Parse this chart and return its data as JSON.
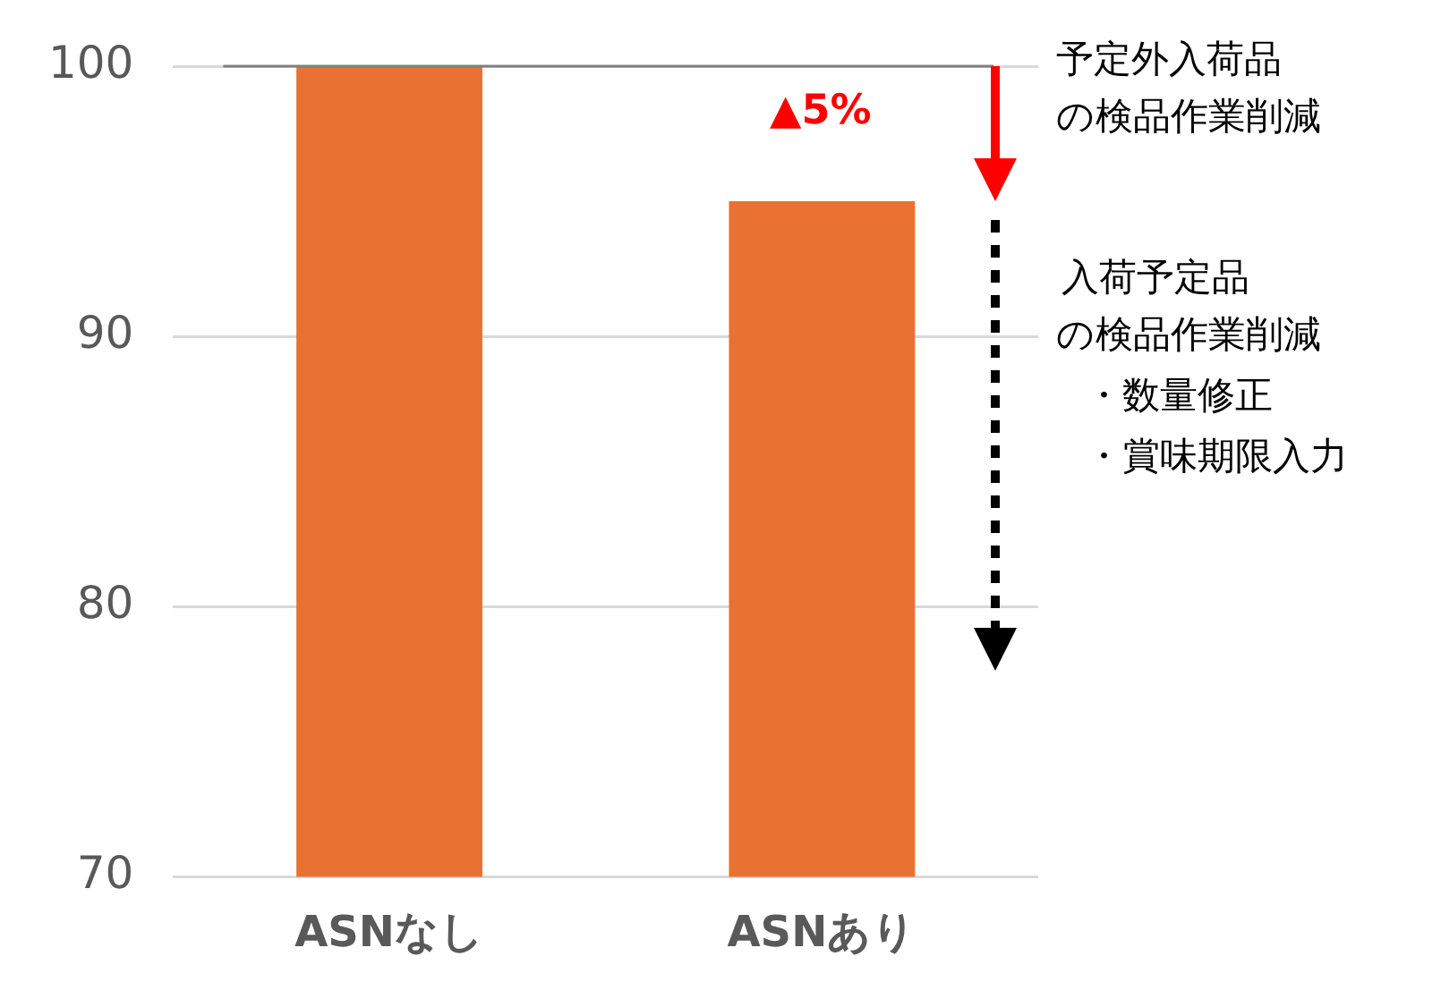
{
  "chart_data": {
    "type": "bar",
    "categories": [
      "ASNなし",
      "ASNあり"
    ],
    "values": [
      100,
      95
    ],
    "color": "#e97132",
    "ylim": [
      70,
      100
    ],
    "yticks": [
      70,
      80,
      90,
      100
    ],
    "grid": "y",
    "ref_lines": [
      {
        "axis": "y",
        "value": 100,
        "color": "#808080"
      }
    ],
    "annotations": [
      "▲5%",
      "予定外入荷品",
      "の検品作業削減",
      "入荷予定品",
      "の検品作業削減",
      "・数量修正",
      "・賞味期限入力"
    ]
  }
}
